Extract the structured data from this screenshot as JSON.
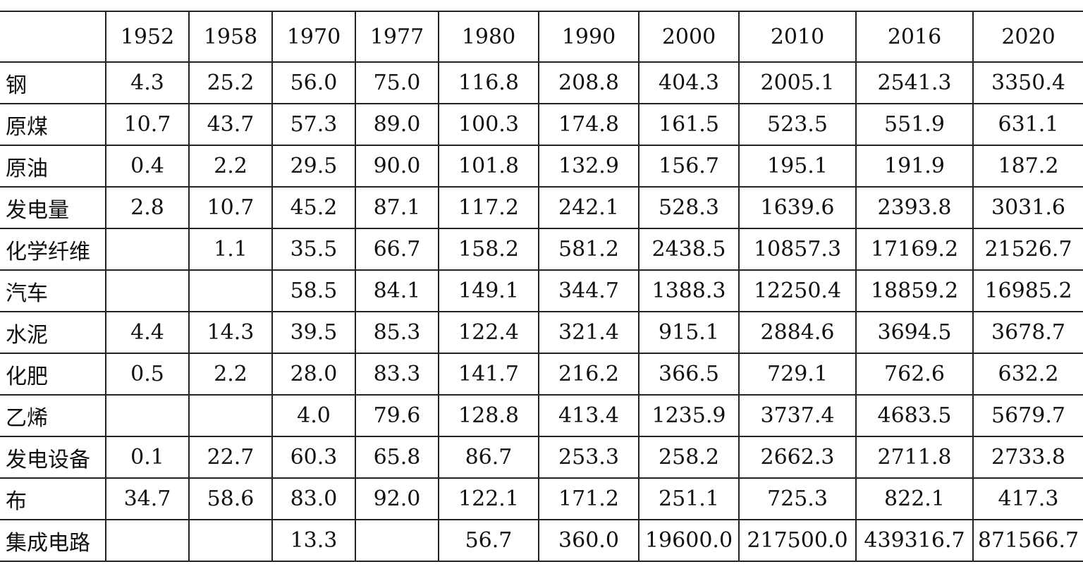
{
  "table": {
    "corner": "",
    "years": [
      "1952",
      "1958",
      "1970",
      "1977",
      "1980",
      "1990",
      "2000",
      "2010",
      "2016",
      "2020"
    ],
    "rows": [
      {
        "label": "钢",
        "values": [
          "4.3",
          "25.2",
          "56.0",
          "75.0",
          "116.8",
          "208.8",
          "404.3",
          "2005.1",
          "2541.3",
          "3350.4"
        ]
      },
      {
        "label": "原煤",
        "values": [
          "10.7",
          "43.7",
          "57.3",
          "89.0",
          "100.3",
          "174.8",
          "161.5",
          "523.5",
          "551.9",
          "631.1"
        ]
      },
      {
        "label": "原油",
        "values": [
          "0.4",
          "2.2",
          "29.5",
          "90.0",
          "101.8",
          "132.9",
          "156.7",
          "195.1",
          "191.9",
          "187.2"
        ]
      },
      {
        "label": "发电量",
        "values": [
          "2.8",
          "10.7",
          "45.2",
          "87.1",
          "117.2",
          "242.1",
          "528.3",
          "1639.6",
          "2393.8",
          "3031.6"
        ]
      },
      {
        "label": "化学纤维",
        "values": [
          "",
          "1.1",
          "35.5",
          "66.7",
          "158.2",
          "581.2",
          "2438.5",
          "10857.3",
          "17169.2",
          "21526.7"
        ]
      },
      {
        "label": "汽车",
        "values": [
          "",
          "",
          "58.5",
          "84.1",
          "149.1",
          "344.7",
          "1388.3",
          "12250.4",
          "18859.2",
          "16985.2"
        ]
      },
      {
        "label": "水泥",
        "values": [
          "4.4",
          "14.3",
          "39.5",
          "85.3",
          "122.4",
          "321.4",
          "915.1",
          "2884.6",
          "3694.5",
          "3678.7"
        ]
      },
      {
        "label": "化肥",
        "values": [
          "0.5",
          "2.2",
          "28.0",
          "83.3",
          "141.7",
          "216.2",
          "366.5",
          "729.1",
          "762.6",
          "632.2"
        ]
      },
      {
        "label": "乙烯",
        "values": [
          "",
          "",
          "4.0",
          "79.6",
          "128.8",
          "413.4",
          "1235.9",
          "3737.4",
          "4683.5",
          "5679.7"
        ]
      },
      {
        "label": "发电设备",
        "values": [
          "0.1",
          "22.7",
          "60.3",
          "65.8",
          "86.7",
          "253.3",
          "258.2",
          "2662.3",
          "2711.8",
          "2733.8"
        ]
      },
      {
        "label": "布",
        "values": [
          "34.7",
          "58.6",
          "83.0",
          "92.0",
          "122.1",
          "171.2",
          "251.1",
          "725.3",
          "822.1",
          "417.3"
        ]
      },
      {
        "label": "集成电路",
        "values": [
          "",
          "",
          "13.3",
          "",
          "56.7",
          "360.0",
          "19600.0",
          "217500.0",
          "439316.7",
          "871566.7"
        ]
      }
    ]
  }
}
